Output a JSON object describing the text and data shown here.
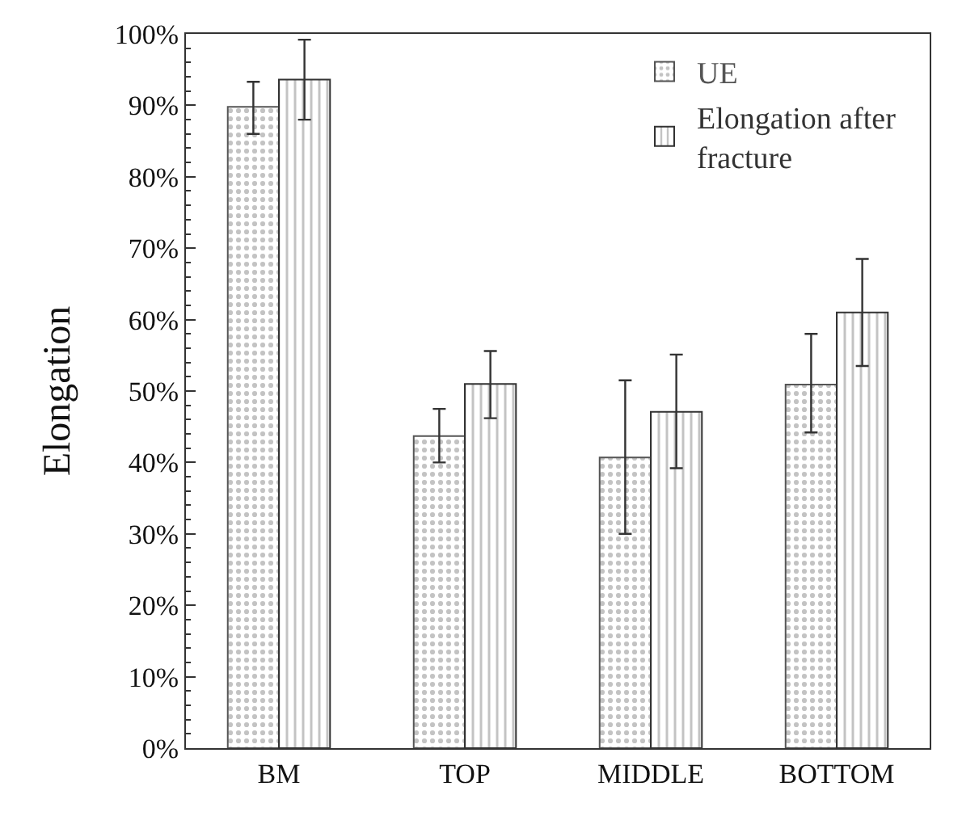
{
  "chart_data": {
    "type": "bar",
    "ylabel": "Elongation",
    "categories": [
      "BM",
      "TOP",
      "MIDDLE",
      "BOTTOM"
    ],
    "series": [
      {
        "name": "UE",
        "color": "#555555",
        "values": [
          89.8,
          43.7,
          40.7,
          50.9
        ],
        "errors": [
          [
            86,
            93.3
          ],
          [
            40,
            47.5
          ],
          [
            30,
            51.5
          ],
          [
            44.2,
            58
          ]
        ]
      },
      {
        "name": "Elongation after fracture",
        "color": "#333333",
        "values": [
          93.6,
          51,
          47.1,
          61
        ],
        "errors": [
          [
            88,
            99.2
          ],
          [
            46.2,
            55.6
          ],
          [
            39.2,
            55.1
          ],
          [
            53.5,
            68.5
          ]
        ]
      }
    ],
    "ylim": [
      0,
      100
    ],
    "yticks": [
      {
        "value": 0,
        "label": "0%"
      },
      {
        "value": 10,
        "label": "10%"
      },
      {
        "value": 20,
        "label": "20%"
      },
      {
        "value": 30,
        "label": "30%"
      },
      {
        "value": 40,
        "label": "40%"
      },
      {
        "value": 50,
        "label": "50%"
      },
      {
        "value": 60,
        "label": "60%"
      },
      {
        "value": 70,
        "label": "70%"
      },
      {
        "value": 80,
        "label": "80%"
      },
      {
        "value": 90,
        "label": "90%"
      },
      {
        "value": 100,
        "label": "100%"
      }
    ],
    "legend": "top right"
  }
}
